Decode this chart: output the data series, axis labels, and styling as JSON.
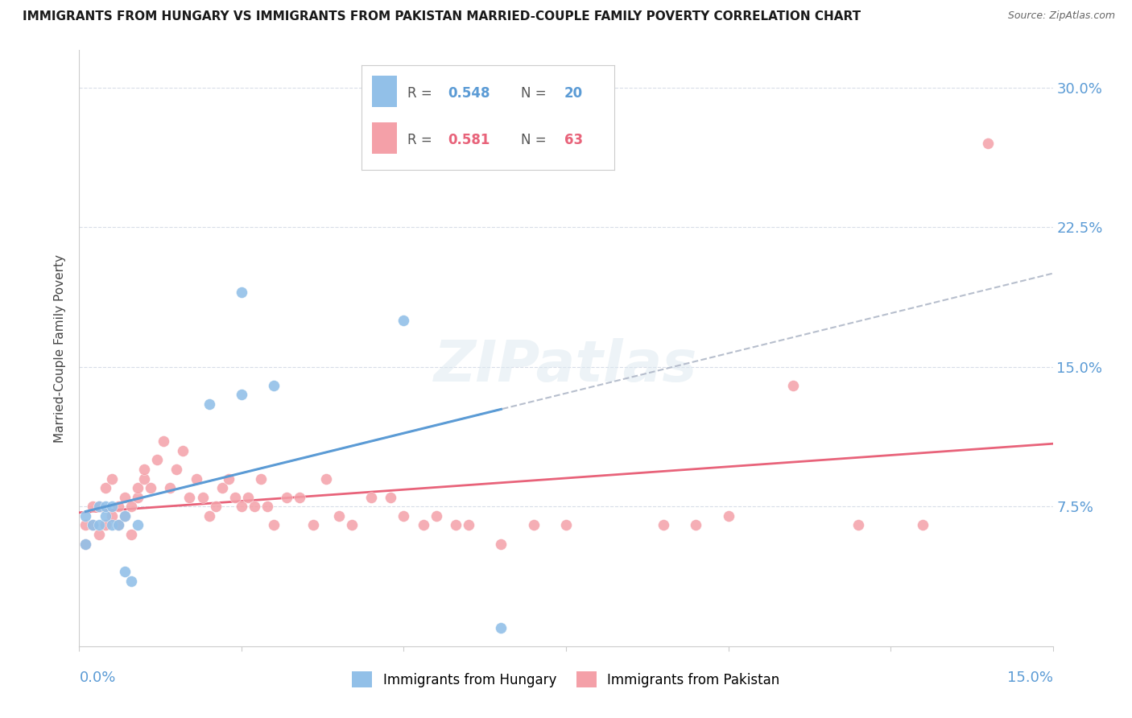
{
  "title": "IMMIGRANTS FROM HUNGARY VS IMMIGRANTS FROM PAKISTAN MARRIED-COUPLE FAMILY POVERTY CORRELATION CHART",
  "source": "Source: ZipAtlas.com",
  "ylabel": "Married-Couple Family Poverty",
  "hungary_color": "#92c0e8",
  "pakistan_color": "#f4a0a8",
  "trend_hungary_color": "#5b9bd5",
  "trend_pakistan_color": "#e8637a",
  "trend_dashed_color": "#b0b8c8",
  "ytick_color": "#5b9bd5",
  "xtick_color": "#5b9bd5",
  "background_color": "#ffffff",
  "xlim": [
    0.0,
    0.15
  ],
  "ylim": [
    0.0,
    0.32
  ],
  "ytick_vals": [
    0.075,
    0.15,
    0.225,
    0.3
  ],
  "ytick_labels": [
    "7.5%",
    "15.0%",
    "22.5%",
    "30.0%"
  ],
  "hungary_x": [
    0.001,
    0.001,
    0.002,
    0.003,
    0.003,
    0.004,
    0.004,
    0.005,
    0.005,
    0.006,
    0.007,
    0.007,
    0.008,
    0.009,
    0.02,
    0.025,
    0.025,
    0.03,
    0.05,
    0.065
  ],
  "hungary_y": [
    0.055,
    0.07,
    0.065,
    0.065,
    0.075,
    0.07,
    0.075,
    0.065,
    0.075,
    0.065,
    0.04,
    0.07,
    0.035,
    0.065,
    0.13,
    0.135,
    0.19,
    0.14,
    0.175,
    0.01
  ],
  "pakistan_x": [
    0.001,
    0.001,
    0.002,
    0.002,
    0.003,
    0.003,
    0.004,
    0.004,
    0.005,
    0.005,
    0.006,
    0.006,
    0.007,
    0.007,
    0.008,
    0.008,
    0.009,
    0.009,
    0.01,
    0.01,
    0.011,
    0.012,
    0.013,
    0.014,
    0.015,
    0.016,
    0.017,
    0.018,
    0.019,
    0.02,
    0.021,
    0.022,
    0.023,
    0.024,
    0.025,
    0.026,
    0.027,
    0.028,
    0.029,
    0.03,
    0.032,
    0.034,
    0.036,
    0.038,
    0.04,
    0.042,
    0.045,
    0.048,
    0.05,
    0.053,
    0.055,
    0.058,
    0.06,
    0.065,
    0.07,
    0.075,
    0.09,
    0.095,
    0.1,
    0.11,
    0.12,
    0.13,
    0.14
  ],
  "pakistan_y": [
    0.055,
    0.065,
    0.065,
    0.075,
    0.06,
    0.075,
    0.065,
    0.085,
    0.07,
    0.09,
    0.065,
    0.075,
    0.07,
    0.08,
    0.06,
    0.075,
    0.08,
    0.085,
    0.09,
    0.095,
    0.085,
    0.1,
    0.11,
    0.085,
    0.095,
    0.105,
    0.08,
    0.09,
    0.08,
    0.07,
    0.075,
    0.085,
    0.09,
    0.08,
    0.075,
    0.08,
    0.075,
    0.09,
    0.075,
    0.065,
    0.08,
    0.08,
    0.065,
    0.09,
    0.07,
    0.065,
    0.08,
    0.08,
    0.07,
    0.065,
    0.07,
    0.065,
    0.065,
    0.055,
    0.065,
    0.065,
    0.065,
    0.065,
    0.07,
    0.14,
    0.065,
    0.065,
    0.27
  ]
}
